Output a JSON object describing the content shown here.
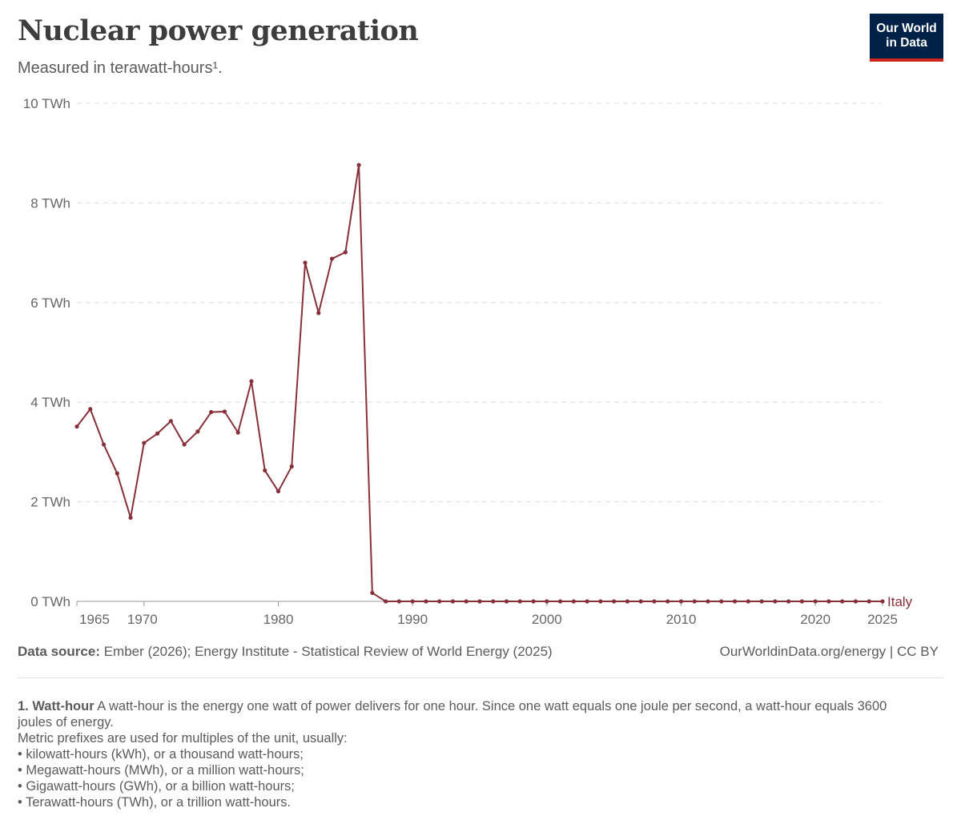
{
  "header": {
    "title": "Nuclear power generation",
    "subtitle": "Measured in terawatt-hours¹."
  },
  "logo": {
    "line1": "Our World",
    "line2": "in Data",
    "bg_color": "#002147",
    "accent_color": "#ce261e"
  },
  "chart_data": {
    "type": "line",
    "title": "Nuclear power generation",
    "subtitle": "Measured in terawatt-hours¹.",
    "xlabel": "",
    "ylabel": "",
    "ylim": [
      0,
      10
    ],
    "xlim": [
      1965,
      2025
    ],
    "y_ticks": [
      {
        "value": 0,
        "label": "0 TWh"
      },
      {
        "value": 2,
        "label": "2 TWh"
      },
      {
        "value": 4,
        "label": "4 TWh"
      },
      {
        "value": 6,
        "label": "6 TWh"
      },
      {
        "value": 8,
        "label": "8 TWh"
      },
      {
        "value": 10,
        "label": "10 TWh"
      }
    ],
    "x_ticks": [
      {
        "value": 1965,
        "label": "1965"
      },
      {
        "value": 1970,
        "label": "1970"
      },
      {
        "value": 1980,
        "label": "1980"
      },
      {
        "value": 1990,
        "label": "1990"
      },
      {
        "value": 2000,
        "label": "2000"
      },
      {
        "value": 2010,
        "label": "2010"
      },
      {
        "value": 2020,
        "label": "2020"
      },
      {
        "value": 2025,
        "label": "2025"
      }
    ],
    "grid": "horizontal dashed",
    "series": [
      {
        "name": "Italy",
        "color": "#883039",
        "x": [
          1965,
          1966,
          1967,
          1968,
          1969,
          1970,
          1971,
          1972,
          1973,
          1974,
          1975,
          1976,
          1977,
          1978,
          1979,
          1980,
          1981,
          1982,
          1983,
          1984,
          1985,
          1986,
          1987,
          1988,
          1989,
          1990,
          1991,
          1992,
          1993,
          1994,
          1995,
          1996,
          1997,
          1998,
          1999,
          2000,
          2001,
          2002,
          2003,
          2004,
          2005,
          2006,
          2007,
          2008,
          2009,
          2010,
          2011,
          2012,
          2013,
          2014,
          2015,
          2016,
          2017,
          2018,
          2019,
          2020,
          2021,
          2022,
          2023,
          2024,
          2025
        ],
        "y": [
          3.51,
          3.86,
          3.15,
          2.57,
          1.68,
          3.18,
          3.37,
          3.62,
          3.15,
          3.41,
          3.8,
          3.81,
          3.39,
          4.42,
          2.63,
          2.21,
          2.71,
          6.8,
          5.79,
          6.88,
          7.01,
          8.76,
          0.17,
          0,
          0,
          0,
          0,
          0,
          0,
          0,
          0,
          0,
          0,
          0,
          0,
          0,
          0,
          0,
          0,
          0,
          0,
          0,
          0,
          0,
          0,
          0,
          0,
          0,
          0,
          0,
          0,
          0,
          0,
          0,
          0,
          0,
          0,
          0,
          0,
          0,
          0
        ]
      }
    ]
  },
  "footer": {
    "source_label": "Data source:",
    "source_text": " Ember (2026); Energy Institute - Statistical Review of World Energy (2025)",
    "credit": "OurWorldinData.org/energy | CC BY"
  },
  "footnote": {
    "term": "1. Watt-hour",
    "definition": " A watt-hour is the energy one watt of power delivers for one hour. Since one watt equals one joule per second, a watt-hour equals 3600 joules of energy.",
    "prefix_intro": "Metric prefixes are used for multiples of the unit, usually:",
    "items": [
      "kilowatt-hours (kWh), or a thousand watt-hours;",
      "Megawatt-hours (MWh), or a million watt-hours;",
      "Gigawatt-hours (GWh), or a billion watt-hours;",
      "Terawatt-hours (TWh), or a trillion watt-hours."
    ]
  }
}
